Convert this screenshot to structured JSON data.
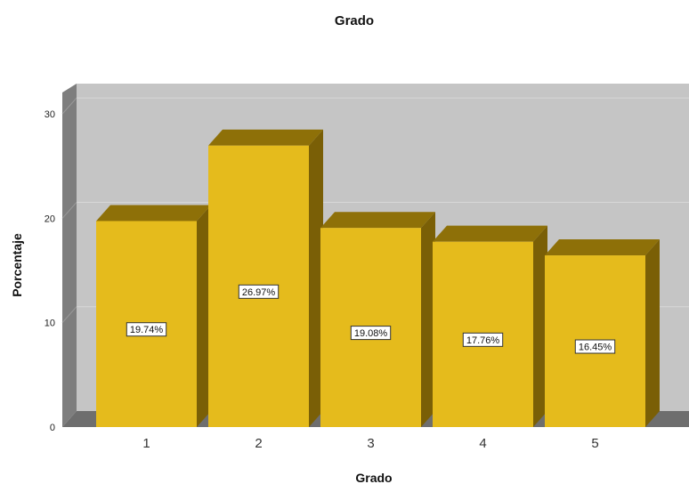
{
  "chart_data": {
    "type": "bar",
    "title": "Grado",
    "xlabel": "Grado",
    "ylabel": "Porcentaje",
    "categories": [
      "1",
      "2",
      "3",
      "4",
      "5"
    ],
    "values": [
      19.74,
      26.97,
      19.08,
      17.76,
      16.45
    ],
    "data_labels": [
      "19.74%",
      "26.97%",
      "19.08%",
      "17.76%",
      "16.45%"
    ],
    "yticks": [
      "0",
      "10",
      "20",
      "30"
    ],
    "ylim": [
      0,
      30
    ],
    "grid": true,
    "legend": "none",
    "colors": {
      "bar_front": "#e5bb1c",
      "bar_top": "#8e7008",
      "bar_side": "#7a5f06",
      "plot_back": "#c5c5c5",
      "wall_left": "#7e7e7e",
      "floor": "#6e6e6e"
    }
  }
}
